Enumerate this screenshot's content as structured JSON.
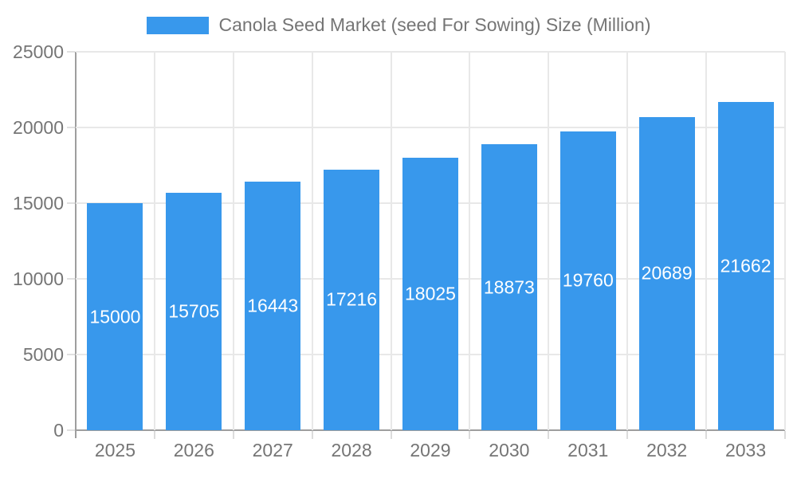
{
  "legend": {
    "label": "Canola Seed Market (seed For Sowing) Size (Million)"
  },
  "chart_data": {
    "type": "bar",
    "title": "Canola Seed Market (seed For Sowing) Size (Million)",
    "categories": [
      "2025",
      "2026",
      "2027",
      "2028",
      "2029",
      "2030",
      "2031",
      "2032",
      "2033"
    ],
    "values": [
      15000,
      15705,
      16443,
      17216,
      18025,
      18873,
      19760,
      20689,
      21662
    ],
    "xlabel": "",
    "ylabel": "",
    "ylim": [
      0,
      25000
    ],
    "ytick_interval": 5000,
    "ytick_labels": [
      "0",
      "5000",
      "10000",
      "15000",
      "20000",
      "25000"
    ],
    "grid": true,
    "legend_position": "top",
    "bar_color": "#3898ec",
    "value_label_color": "#ffffff",
    "axis_text_color": "#757575",
    "gridline_color": "#e8e8e8",
    "axis_line_color": "#9e9e9e"
  }
}
